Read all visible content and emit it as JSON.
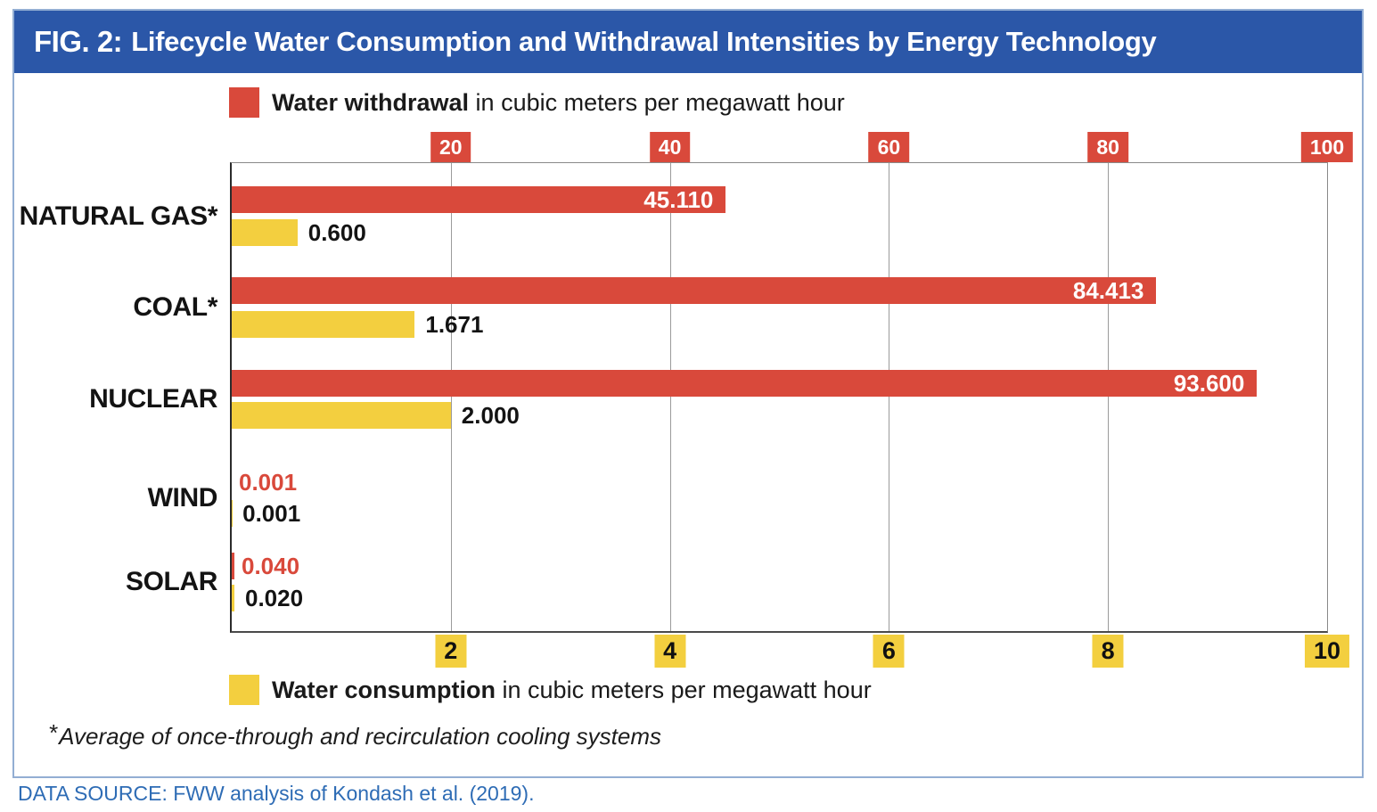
{
  "header": {
    "fig_label": "FIG. 2:",
    "title": "Lifecycle Water Consumption and Withdrawal Intensities by Energy Technology"
  },
  "legend_top": {
    "bold": "Water withdrawal",
    "rest": " in cubic meters per megawatt hour"
  },
  "legend_bottom": {
    "bold": "Water consumption",
    "rest": " in cubic meters per megawatt hour"
  },
  "footnote": {
    "asterisk": "*",
    "text": "Average of once-through and recirculation cooling systems"
  },
  "data_source": "DATA SOURCE: FWW analysis of Kondash et al. (2019).",
  "colors": {
    "header_bg": "#2b57a8",
    "withdrawal_red": "#d9493b",
    "consumption_yellow": "#f3cf3f",
    "gridline": "#9b9b9b",
    "datasource_text": "#2e6cb5",
    "value_text_dark": "#131313",
    "value_text_light": "#ffffff"
  },
  "chart_data": {
    "type": "bar",
    "orientation": "horizontal",
    "title": "Lifecycle Water Consumption and Withdrawal Intensities by Energy Technology",
    "categories": [
      "NATURAL GAS*",
      "COAL*",
      "NUCLEAR",
      "WIND",
      "SOLAR"
    ],
    "series": [
      {
        "name": "Water withdrawal",
        "unit": "cubic meters per megawatt hour",
        "axis": "top",
        "values": [
          45.11,
          84.413,
          93.6,
          0.001,
          0.04
        ],
        "labels": [
          "45.110",
          "84.413",
          "93.600",
          "0.001",
          "0.040"
        ]
      },
      {
        "name": "Water consumption",
        "unit": "cubic meters per megawatt hour",
        "axis": "bottom",
        "values": [
          0.6,
          1.671,
          2.0,
          0.001,
          0.02
        ],
        "labels": [
          "0.600",
          "1.671",
          "2.000",
          "0.001",
          "0.020"
        ]
      }
    ],
    "top_axis": {
      "range": [
        0,
        100
      ],
      "ticks": [
        20,
        40,
        60,
        80,
        100
      ]
    },
    "bottom_axis": {
      "range": [
        0,
        10
      ],
      "ticks": [
        2,
        4,
        6,
        8,
        10
      ]
    },
    "grid": true,
    "legend_position": "top-and-bottom"
  }
}
